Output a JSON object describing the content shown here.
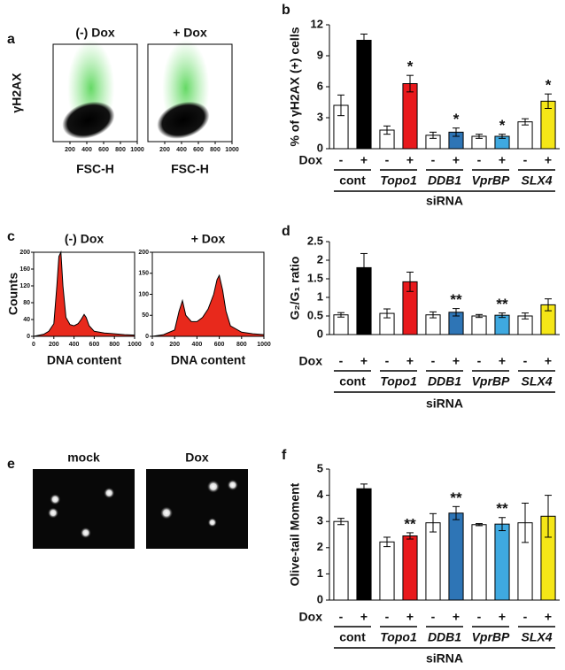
{
  "chart_data": [
    {
      "type": "scatter-density",
      "panel": "a",
      "title": "(-) Dox",
      "xlabel": "FSC-H",
      "ylabel": "γH2AX",
      "xlim": [
        0,
        1000
      ],
      "xticks": [
        200,
        400,
        600,
        800,
        1000
      ]
    },
    {
      "type": "scatter-density",
      "title": "+ Dox",
      "xlabel": "FSC-H",
      "xlim": [
        0,
        1000
      ],
      "xticks": [
        200,
        400,
        600,
        800,
        1000
      ]
    },
    {
      "type": "bar",
      "panel": "b",
      "ylabel": "% of γH2AX (+) cells",
      "ylim": [
        0,
        12
      ],
      "yticks": [
        0,
        3,
        6,
        9,
        12
      ],
      "row_label": "Dox",
      "categories": [
        "-",
        "+",
        "-",
        "+",
        "-",
        "+",
        "-",
        "+",
        "-",
        "+"
      ],
      "groups": [
        "cont",
        "Topo1",
        "DDB1",
        "VprBP",
        "SLX4"
      ],
      "group_italic": [
        false,
        true,
        true,
        true,
        true
      ],
      "group_label": "siRNA",
      "series": [
        {
          "values": [
            4.2,
            10.5,
            1.8,
            6.3,
            1.3,
            1.6,
            1.2,
            1.2,
            2.6,
            4.6
          ],
          "errors": [
            1.0,
            0.6,
            0.4,
            0.8,
            0.3,
            0.4,
            0.2,
            0.2,
            0.3,
            0.7
          ],
          "colors": [
            "#ffffff",
            "#000000",
            "#ffffff",
            "#e8191c",
            "#ffffff",
            "#2e75b6",
            "#ffffff",
            "#3fa9e0",
            "#ffffff",
            "#f5e617"
          ],
          "annotations": [
            null,
            null,
            null,
            "*",
            null,
            "*",
            null,
            "*",
            null,
            "*"
          ]
        }
      ]
    },
    {
      "type": "area",
      "panel": "c",
      "title": "(-) Dox",
      "xlabel": "DNA content",
      "ylabel": "Counts",
      "xlim": [
        0,
        1000
      ],
      "xticks": [
        0,
        200,
        400,
        600,
        800,
        1000
      ],
      "ylim": [
        0,
        200
      ],
      "yticks": [
        0,
        40,
        80,
        120,
        160,
        200
      ],
      "color": "#e8291c",
      "x": [
        0,
        100,
        150,
        200,
        230,
        250,
        270,
        290,
        320,
        360,
        400,
        440,
        470,
        500,
        520,
        550,
        600,
        700,
        800,
        900,
        1000
      ],
      "values": [
        0,
        5,
        12,
        30,
        120,
        190,
        200,
        120,
        45,
        28,
        25,
        30,
        40,
        52,
        45,
        25,
        12,
        8,
        6,
        4,
        3
      ]
    },
    {
      "type": "area",
      "title": "+ Dox",
      "xlabel": "DNA content",
      "xlim": [
        0,
        1000
      ],
      "xticks": [
        0,
        200,
        400,
        600,
        800,
        1000
      ],
      "ylim": [
        0,
        200
      ],
      "yticks": [
        0,
        50,
        100,
        150,
        200
      ],
      "color": "#e8291c",
      "x": [
        0,
        100,
        200,
        240,
        270,
        300,
        350,
        400,
        450,
        500,
        550,
        580,
        600,
        630,
        660,
        700,
        800,
        900,
        1000
      ],
      "values": [
        0,
        4,
        15,
        60,
        85,
        50,
        35,
        35,
        45,
        65,
        100,
        135,
        145,
        110,
        60,
        25,
        10,
        6,
        4
      ]
    },
    {
      "type": "bar",
      "panel": "d",
      "ylabel": "G₂/G₁ ratio",
      "ylim": [
        0,
        2.5
      ],
      "yticks": [
        0,
        0.5,
        1,
        1.5,
        2,
        2.5
      ],
      "row_label": "Dox",
      "categories": [
        "-",
        "+",
        "-",
        "+",
        "-",
        "+",
        "-",
        "+",
        "-",
        "+"
      ],
      "groups": [
        "cont",
        "Topo1",
        "DDB1",
        "VprBP",
        "SLX4"
      ],
      "group_italic": [
        false,
        true,
        true,
        true,
        true
      ],
      "group_label": "siRNA",
      "series": [
        {
          "values": [
            0.53,
            1.8,
            0.57,
            1.42,
            0.53,
            0.6,
            0.5,
            0.52,
            0.5,
            0.8
          ],
          "errors": [
            0.06,
            0.38,
            0.12,
            0.26,
            0.08,
            0.1,
            0.04,
            0.06,
            0.08,
            0.16
          ],
          "colors": [
            "#ffffff",
            "#000000",
            "#ffffff",
            "#e8191c",
            "#ffffff",
            "#2e75b6",
            "#ffffff",
            "#3fa9e0",
            "#ffffff",
            "#f5e617"
          ],
          "annotations": [
            null,
            null,
            null,
            null,
            null,
            "**",
            null,
            "**",
            null,
            null
          ]
        }
      ]
    },
    {
      "type": "image",
      "panel": "e",
      "title": "mock"
    },
    {
      "type": "image",
      "title": "Dox"
    },
    {
      "type": "bar",
      "panel": "f",
      "ylabel": "Olive-tail Moment",
      "ylim": [
        0,
        5
      ],
      "yticks": [
        0,
        1,
        2,
        3,
        4,
        5
      ],
      "row_label": "Dox",
      "categories": [
        "-",
        "+",
        "-",
        "+",
        "-",
        "+",
        "-",
        "+",
        "-",
        "+"
      ],
      "groups": [
        "cont",
        "Topo1",
        "DDB1",
        "VprBP",
        "SLX4"
      ],
      "group_italic": [
        false,
        true,
        true,
        true,
        true
      ],
      "group_label": "siRNA",
      "series": [
        {
          "values": [
            3.0,
            4.25,
            2.22,
            2.45,
            2.95,
            3.32,
            2.88,
            2.9,
            2.95,
            3.2
          ],
          "errors": [
            0.12,
            0.18,
            0.18,
            0.12,
            0.35,
            0.25,
            0.04,
            0.25,
            0.75,
            0.8
          ],
          "colors": [
            "#ffffff",
            "#000000",
            "#ffffff",
            "#e8191c",
            "#ffffff",
            "#2e75b6",
            "#ffffff",
            "#3fa9e0",
            "#ffffff",
            "#f5e617"
          ],
          "annotations": [
            null,
            null,
            null,
            "**",
            null,
            "**",
            null,
            "**",
            null,
            null
          ]
        }
      ]
    }
  ]
}
